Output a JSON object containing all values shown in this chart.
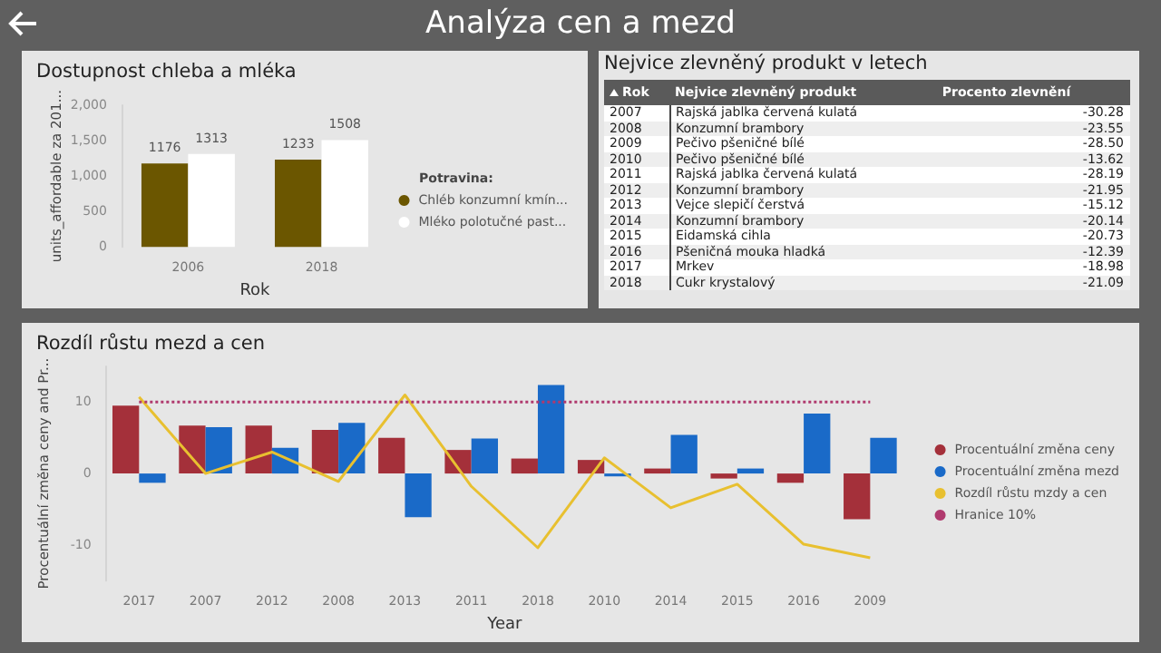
{
  "chart_data": [
    {
      "type": "bar",
      "title": "Dostupnost chleba a mléka",
      "xlabel": "Rok",
      "ylabel": "units_affordable za 201...",
      "legend_title": "Potravina:",
      "categories": [
        "2006",
        "2018"
      ],
      "annotations": [
        "Analýza cen a mezd"
      ],
      "series": [
        {
          "name": "Chléb konzumní kmín...",
          "color": "#6b5600",
          "values": [
            1176,
            1233
          ]
        },
        {
          "name": "Mléko polotučné past...",
          "color": "#ffffff",
          "values": [
            1313,
            1508
          ]
        }
      ],
      "ylim": [
        0,
        2000
      ],
      "yticks": [
        {
          "value": 0,
          "label": "0"
        },
        {
          "value": 500,
          "label": "500"
        },
        {
          "value": 1000,
          "label": "1,000"
        },
        {
          "value": 1500,
          "label": "1,500"
        },
        {
          "value": 2000,
          "label": "2,000"
        }
      ],
      "data_labels": true,
      "grid": false,
      "legend": "right"
    },
    {
      "type": "heatmap",
      "title": "Nejvice zlevněný produkt v letech",
      "ylabel": "Rok",
      "categories": [
        "Nejvice zlevněný produkt",
        "Procento zlevnění"
      ],
      "y_categories": [
        "2007",
        "2008",
        "2009",
        "2010",
        "2011",
        "2012",
        "2013",
        "2014",
        "2015",
        "2016",
        "2017",
        "2018"
      ],
      "cells": [
        [
          null,
          null
        ],
        [
          null,
          null
        ],
        [
          null,
          null
        ],
        [
          null,
          null
        ],
        [
          null,
          null
        ],
        [
          null,
          null
        ],
        [
          null,
          null
        ],
        [
          null,
          null
        ],
        [
          null,
          null
        ],
        [
          null,
          null
        ],
        [
          null,
          null
        ],
        [
          null,
          null
        ]
      ],
      "cell_labels": [
        [
          "Rajská jablka červená kulatá",
          "-30.28"
        ],
        [
          "Konzumní brambory",
          "-23.55"
        ],
        [
          "Pečivo pšeničné bílé",
          "-28.50"
        ],
        [
          "Pečivo pšeničné bílé",
          "-13.62"
        ],
        [
          "Rajská jablka červená kulatá",
          "-28.19"
        ],
        [
          "Konzumní brambory",
          "-21.95"
        ],
        [
          "Vejce slepičí čerstvá",
          "-15.12"
        ],
        [
          "Konzumní brambory",
          "-20.14"
        ],
        [
          "Eidamská cihla",
          "-20.73"
        ],
        [
          "Pšeničná mouka hladká",
          "-12.39"
        ],
        [
          "Mrkev",
          "-18.98"
        ],
        [
          "Cukr krystalový",
          "-21.09"
        ]
      ]
    },
    {
      "type": "bar",
      "title": "Rozdíl růstu mezd a cen",
      "xlabel": "Year",
      "ylabel": "Procentuální změna ceny and Pr...",
      "categories": [
        "2017",
        "2007",
        "2012",
        "2008",
        "2013",
        "2011",
        "2018",
        "2010",
        "2014",
        "2015",
        "2016",
        "2009"
      ],
      "series": [
        {
          "name": "Procentuální změna ceny",
          "color": "#a4303a",
          "values": [
            9.5,
            6.7,
            6.7,
            6.1,
            5.0,
            3.3,
            2.1,
            1.9,
            0.7,
            -0.7,
            -1.3,
            -6.4
          ]
        },
        {
          "name": "Procentuální změna mezd",
          "color": "#1a6ac8",
          "values": [
            -1.3,
            6.5,
            3.6,
            7.1,
            -6.1,
            4.9,
            12.4,
            -0.4,
            5.4,
            0.7,
            8.4,
            5.0
          ]
        },
        {
          "name": "Rozdíl růstu mzdy a cen",
          "type": "line",
          "color": "#e8c030",
          "line_style": "solid",
          "values": [
            10.7,
            0,
            3.0,
            -1.1,
            11.0,
            -1.8,
            -10.4,
            2.2,
            -4.8,
            -1.5,
            -9.9,
            -11.8
          ]
        },
        {
          "name": "Hranice 10%",
          "type": "line",
          "color": "#b03a6e",
          "line_style": "dotted",
          "values": [
            10,
            10,
            10,
            10,
            10,
            10,
            10,
            10,
            10,
            10,
            10,
            10
          ]
        }
      ],
      "ylim": [
        -15,
        15
      ],
      "yticks": [
        -10,
        0,
        10
      ],
      "grid": false,
      "legend": "right",
      "marker": "none"
    }
  ]
}
